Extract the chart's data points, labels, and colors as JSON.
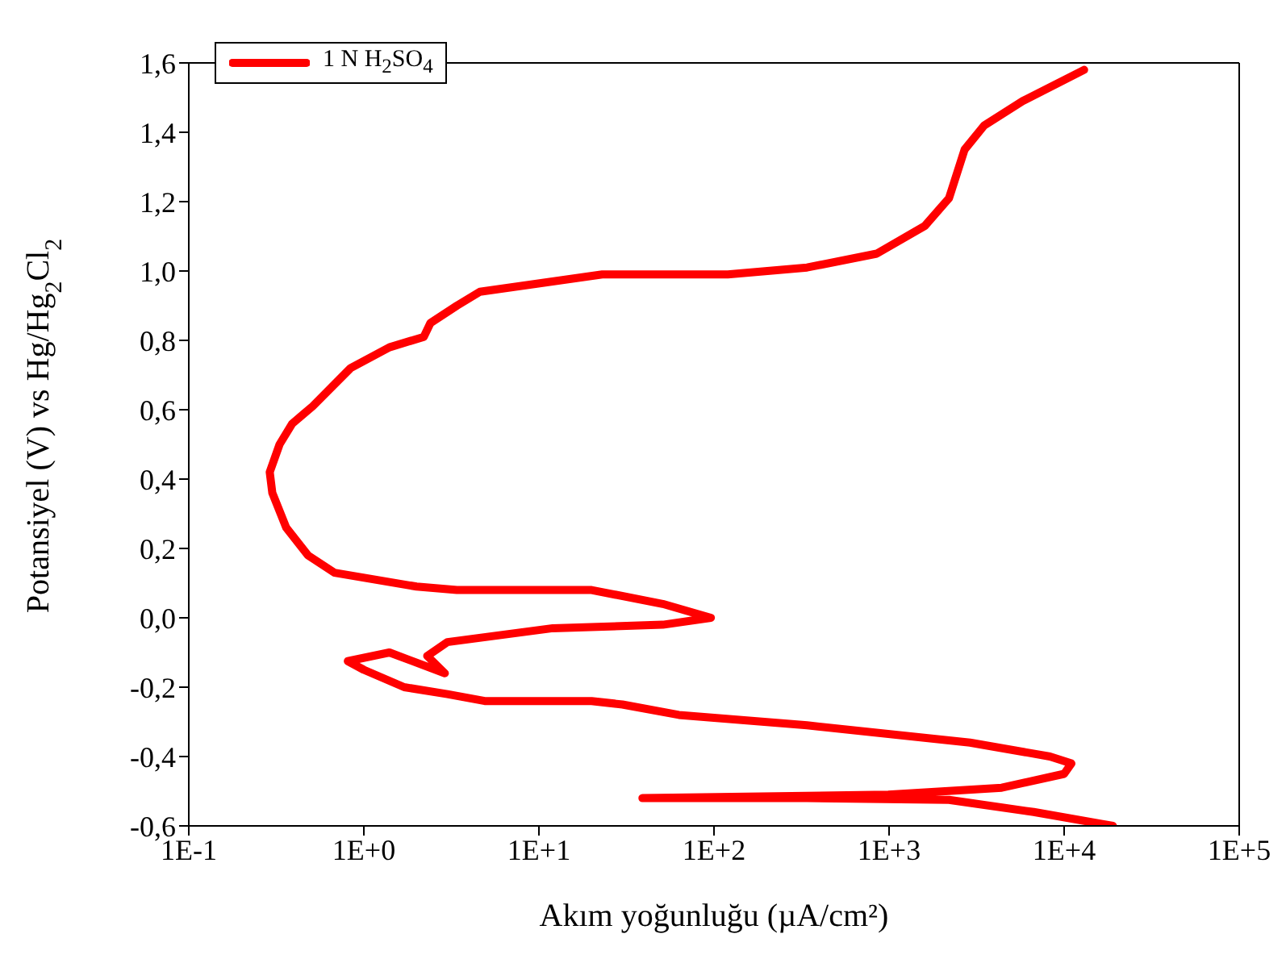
{
  "chart_data": {
    "type": "line",
    "xlabel": "Akım yoğunluğu (µA/cm²)",
    "ylabel": "Potansiyel (V) vs Hg/Hg$_{2}$Cl$_{2}$",
    "log": "x",
    "legend": "top left",
    "marker": "none",
    "line_style": "solid",
    "xlim": [
      0.1,
      100000
    ],
    "xticks": [
      {
        "value": 0.1,
        "label": "1E-1"
      },
      {
        "value": 1,
        "label": "1E+0"
      },
      {
        "value": 10,
        "label": "1E+1"
      },
      {
        "value": 100,
        "label": "1E+2"
      },
      {
        "value": 1000,
        "label": "1E+3"
      },
      {
        "value": 10000,
        "label": "1E+4"
      },
      {
        "value": 100000,
        "label": "1E+5"
      }
    ],
    "ylim": [
      -0.6,
      1.6
    ],
    "yticks": [
      {
        "value": -0.6,
        "label": "-0,6"
      },
      {
        "value": -0.4,
        "label": "-0,4"
      },
      {
        "value": -0.2,
        "label": "-0,2"
      },
      {
        "value": 0,
        "label": "0,0"
      },
      {
        "value": 0.2,
        "label": "0,2"
      },
      {
        "value": 0.4,
        "label": "0,4"
      },
      {
        "value": 0.6,
        "label": "0,6"
      },
      {
        "value": 0.8,
        "label": "0,8"
      },
      {
        "value": 1,
        "label": "1,0"
      },
      {
        "value": 1.2,
        "label": "1,2"
      },
      {
        "value": 1.4,
        "label": "1,4"
      },
      {
        "value": 1.6,
        "label": "1,6"
      }
    ],
    "series": [
      {
        "name": "1 N H$_{2}$SO$_{4}$",
        "color": "#ff0000",
        "x": [
          19000,
          6700,
          2200,
          340,
          39,
          990,
          4400,
          10000,
          11000,
          8300,
          2900,
          340,
          63,
          30,
          20,
          4.9,
          3.0,
          1.7,
          1.0,
          0.81,
          1.4,
          2.9,
          2.3,
          3.0,
          12,
          51,
          96,
          51,
          20,
          3.4,
          2.0,
          0.68,
          0.48,
          0.36,
          0.3,
          0.29,
          0.33,
          0.39,
          0.51,
          0.84,
          1.4,
          2.2,
          2.4,
          3.4,
          4.6,
          8.7,
          23,
          120,
          340,
          850,
          1600,
          2200,
          2700,
          3500,
          5800,
          13000
        ],
        "values": [
          -0.6,
          -0.56,
          -0.525,
          -0.52,
          -0.52,
          -0.51,
          -0.49,
          -0.45,
          -0.42,
          -0.4,
          -0.36,
          -0.31,
          -0.28,
          -0.25,
          -0.24,
          -0.24,
          -0.22,
          -0.2,
          -0.15,
          -0.125,
          -0.1,
          -0.16,
          -0.11,
          -0.07,
          -0.03,
          -0.02,
          0.0,
          0.04,
          0.08,
          0.08,
          0.09,
          0.13,
          0.18,
          0.26,
          0.36,
          0.42,
          0.5,
          0.56,
          0.61,
          0.72,
          0.78,
          0.81,
          0.85,
          0.9,
          0.94,
          0.96,
          0.99,
          0.99,
          1.01,
          1.05,
          1.13,
          1.21,
          1.35,
          1.42,
          1.49,
          1.58
        ]
      }
    ]
  }
}
